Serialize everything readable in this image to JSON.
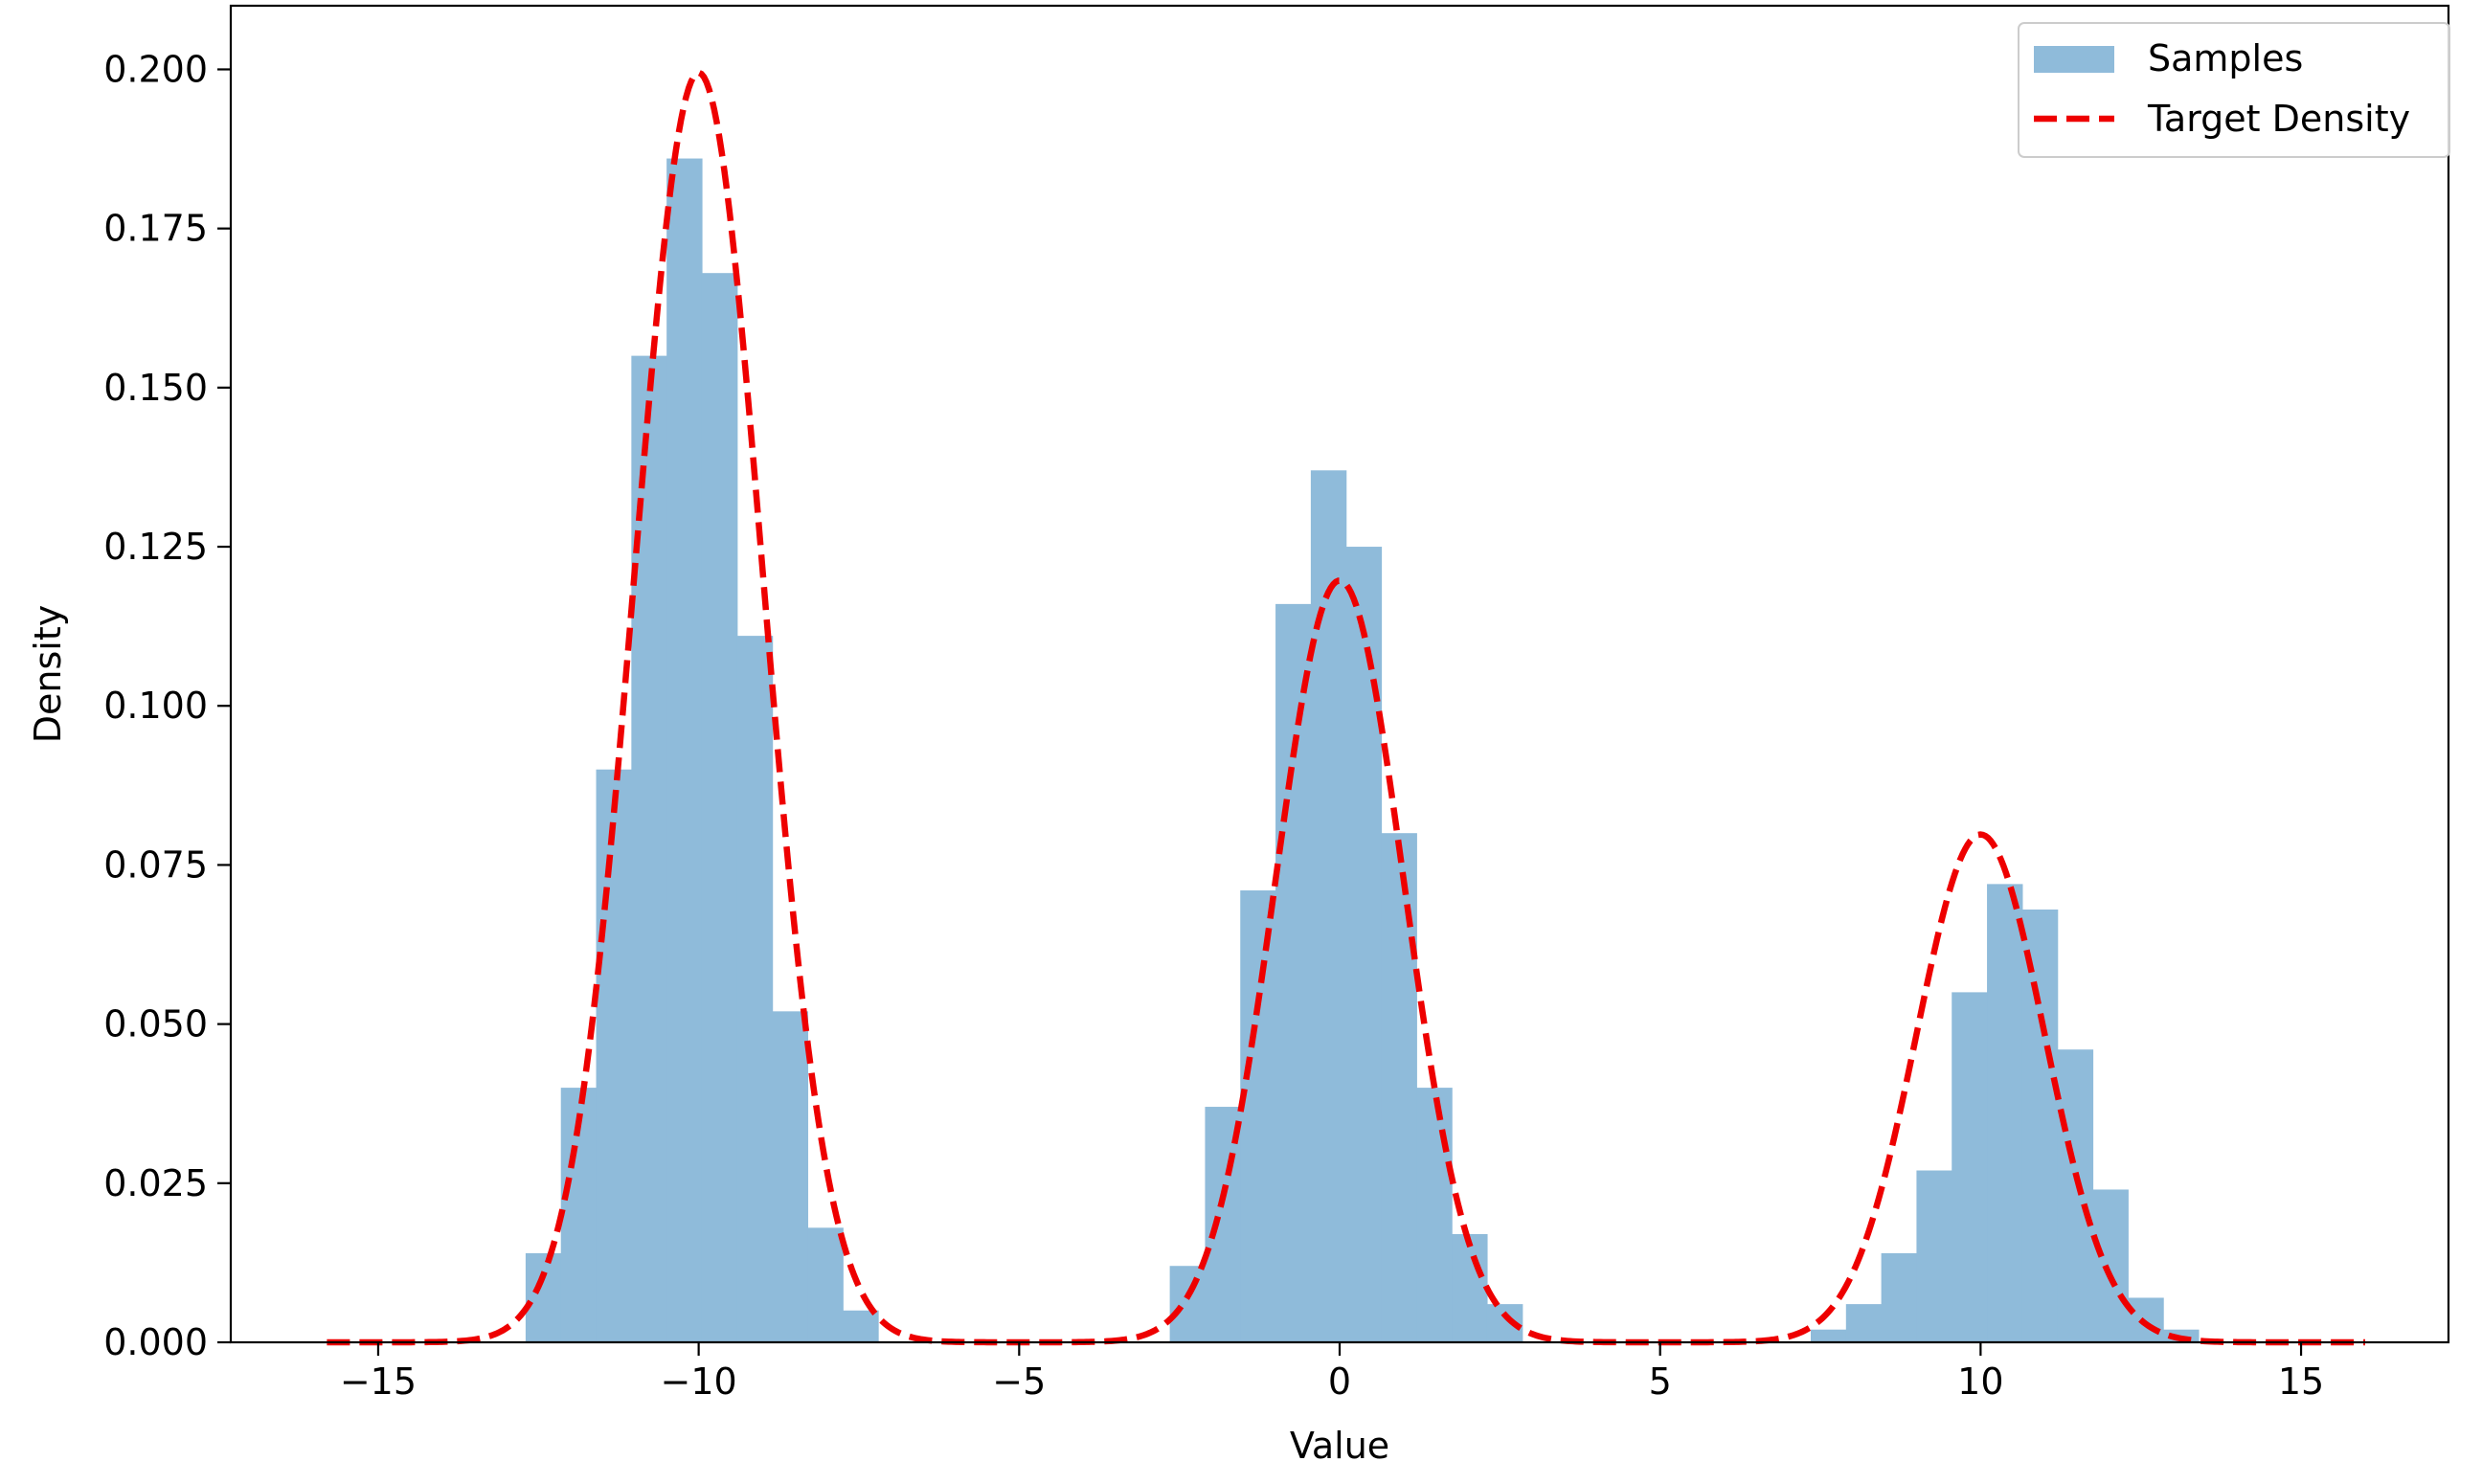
{
  "chart_data": {
    "type": "bar",
    "title": "",
    "xlabel": "Value",
    "ylabel": "Density",
    "xlim": [
      -17.3,
      17.3
    ],
    "ylim": [
      0,
      0.21
    ],
    "xticks": [
      -15,
      -10,
      -5,
      0,
      5,
      10,
      15
    ],
    "xtick_labels": [
      "−15",
      "−10",
      "−5",
      "0",
      "5",
      "10",
      "15"
    ],
    "yticks": [
      0,
      0.025,
      0.05,
      0.075,
      0.1,
      0.125,
      0.15,
      0.175,
      0.2
    ],
    "ytick_labels": [
      "0.000",
      "0.025",
      "0.050",
      "0.075",
      "0.100",
      "0.125",
      "0.150",
      "0.175",
      "0.200"
    ],
    "grid": false,
    "legend_position": "top-right",
    "histogram": {
      "name": "Samples",
      "color": "#8fbbda",
      "bins": [
        [
          -12.7,
          -12.15,
          0.014
        ],
        [
          -12.15,
          -11.6,
          0.04
        ],
        [
          -11.6,
          -11.05,
          0.09
        ],
        [
          -11.05,
          -10.5,
          0.155
        ],
        [
          -10.5,
          -9.95,
          0.186
        ],
        [
          -9.95,
          -9.4,
          0.168
        ],
        [
          -9.4,
          -8.85,
          0.111
        ],
        [
          -8.85,
          -8.3,
          0.052
        ],
        [
          -8.3,
          -7.75,
          0.018
        ],
        [
          -7.75,
          -7.2,
          0.005
        ],
        [
          -2.65,
          -2.1,
          0.012
        ],
        [
          -2.1,
          -1.55,
          0.037
        ],
        [
          -1.55,
          -1.0,
          0.071
        ],
        [
          -1.0,
          -0.45,
          0.116
        ],
        [
          -0.45,
          0.1,
          0.137
        ],
        [
          0.1,
          0.65,
          0.125
        ],
        [
          0.65,
          1.2,
          0.08
        ],
        [
          1.2,
          1.75,
          0.04
        ],
        [
          1.75,
          2.3,
          0.017
        ],
        [
          2.3,
          2.85,
          0.006
        ],
        [
          7.35,
          7.9,
          0.002
        ],
        [
          7.9,
          8.45,
          0.006
        ],
        [
          8.45,
          9.0,
          0.014
        ],
        [
          9.0,
          9.55,
          0.027
        ],
        [
          9.55,
          10.1,
          0.055
        ],
        [
          10.1,
          10.65,
          0.072
        ],
        [
          10.65,
          11.2,
          0.068
        ],
        [
          11.2,
          11.75,
          0.046
        ],
        [
          11.75,
          12.3,
          0.024
        ],
        [
          12.3,
          12.85,
          0.007
        ],
        [
          12.85,
          13.4,
          0.002
        ]
      ]
    },
    "curve": {
      "name": "Target Density",
      "color": "#ee0000",
      "style": "dashed",
      "x_range": [
        -15.8,
        16.0
      ],
      "components": [
        {
          "weight": 0.5,
          "mean": -10,
          "sd": 1
        },
        {
          "weight": 0.3,
          "mean": 0,
          "sd": 1
        },
        {
          "weight": 0.2,
          "mean": 10,
          "sd": 1
        }
      ],
      "peaks": [
        [
          -10,
          0.1995
        ],
        [
          0,
          0.1197
        ],
        [
          10,
          0.0798
        ]
      ]
    },
    "legend": [
      {
        "label": "Samples",
        "kind": "patch"
      },
      {
        "label": "Target Density",
        "kind": "dashed-line"
      }
    ]
  }
}
